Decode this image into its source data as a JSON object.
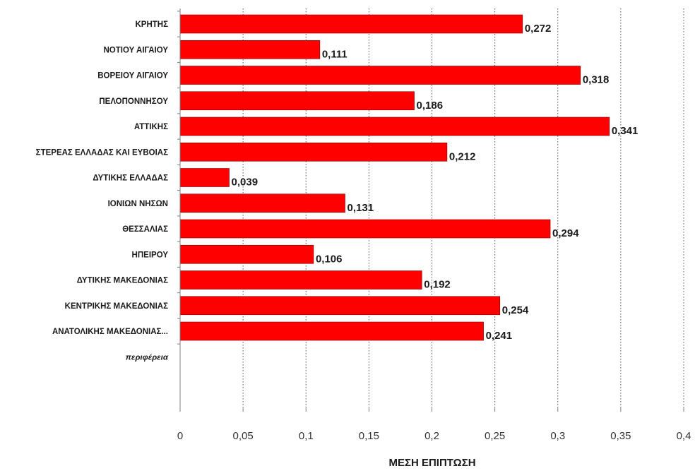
{
  "chart_data": {
    "type": "bar",
    "orientation": "horizontal",
    "categories": [
      "ΚΡΗΤΗΣ",
      "ΝΟΤΙΟΥ ΑΙΓΑΙΟΥ",
      "ΒΟΡΕΙΟΥ ΑΙΓΑΙΟΥ",
      "ΠΕΛΟΠΟΝΝΗΣΟΥ",
      "ΑΤΤΙΚΗΣ",
      "ΣΤΕΡΕΑΣ ΕΛΛΑΔΑΣ ΚΑΙ ΕΥΒΟΙΑΣ",
      "ΔΥΤΙΚΗΣ ΕΛΛΑΔΑΣ",
      "ΙΟΝΙΩΝ ΝΗΣΩΝ",
      "ΘΕΣΣΑΛΙΑΣ",
      "ΗΠΕΙΡΟΥ",
      "ΔΥΤΙΚΗΣ ΜΑΚΕΔΟΝΙΑΣ",
      "ΚΕΝΤΡΙΚΗΣ ΜΑΚΕΔΟΝΙΑΣ",
      "ΑΝΑΤΟΛΙΚΗΣ ΜΑΚΕΔΟΝΙΑΣ...",
      "περιφέρεια"
    ],
    "values": [
      0.272,
      0.111,
      0.318,
      0.186,
      0.341,
      0.212,
      0.039,
      0.131,
      0.294,
      0.106,
      0.192,
      0.254,
      0.241,
      null
    ],
    "value_labels": [
      "0,272",
      "0,111",
      "0,318",
      "0,186",
      "0,341",
      "0,212",
      "0,039",
      "0,131",
      "0,294",
      "0,106",
      "0,192",
      "0,254",
      "0,241",
      ""
    ],
    "x_ticks": [
      0,
      0.05,
      0.1,
      0.15,
      0.2,
      0.25,
      0.3,
      0.35,
      0.4
    ],
    "x_tick_labels": [
      "0",
      "0,05",
      "0,1",
      "0,15",
      "0,2",
      "0,25",
      "0,3",
      "0,35",
      "0,4"
    ],
    "xlim": [
      0,
      0.4
    ],
    "xlabel": "ΜΕΣΗ ΕΠΙΠΤΩΣΗ",
    "ylabel": "",
    "title": "",
    "grid": "vertical-dotted",
    "bar_color": "#ff0000",
    "bar_edge_color": "#7a0000"
  }
}
